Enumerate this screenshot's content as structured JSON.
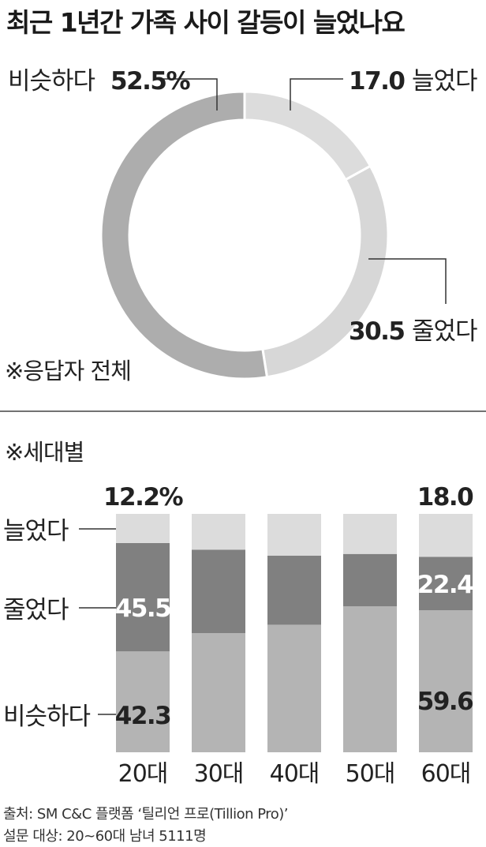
{
  "title": "최근 1년간 가족 사이 갈등이 늘었나요",
  "colors": {
    "increased": "#dcdcdc",
    "decreased": "#808080",
    "same": "#b4b4b4"
  },
  "chart_data": [
    {
      "type": "pie",
      "note": "※응답자 전체",
      "unit_label": "%",
      "slices": [
        {
          "label": "늘었다",
          "value": 17.0,
          "value_text": "17.0"
        },
        {
          "label": "줄었다",
          "value": 30.5,
          "value_text": "30.5"
        },
        {
          "label": "비슷하다",
          "value": 52.5,
          "value_text": "52.5%"
        }
      ]
    },
    {
      "type": "bar",
      "note": "※세대별",
      "stacked": true,
      "categories": [
        "20대",
        "30대",
        "40대",
        "50대",
        "60대"
      ],
      "series": [
        {
          "name": "비슷하다",
          "values": [
            42.3,
            50.0,
            53.5,
            61.2,
            59.6
          ],
          "labels": [
            "42.3",
            "",
            "",
            "",
            "59.6"
          ]
        },
        {
          "name": "줄었다",
          "values": [
            45.5,
            35.0,
            29.0,
            22.0,
            22.4
          ],
          "labels": [
            "45.5",
            "",
            "",
            "",
            "22.4"
          ]
        },
        {
          "name": "늘었다",
          "values": [
            12.2,
            15.0,
            17.5,
            16.8,
            18.0
          ],
          "labels": [
            "12.2%",
            "",
            "",
            "",
            "18.0"
          ]
        }
      ],
      "ylim": [
        0,
        100
      ]
    }
  ],
  "source": {
    "line1": "출처: SM C&C 플랫폼 ‘틸리언 프로(Tillion Pro)’",
    "line2": "설문 대상: 20~60대 남녀 5111명"
  }
}
